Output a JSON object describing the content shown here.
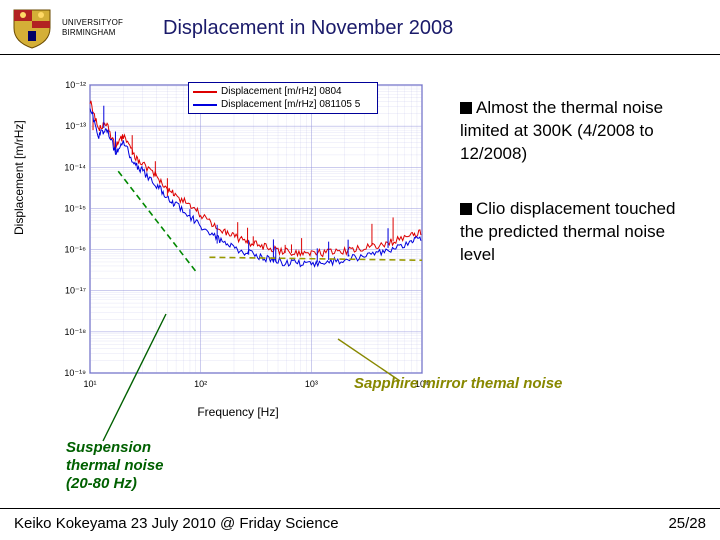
{
  "header": {
    "university_line1": "UNIVERSITYOF",
    "university_line2": "BIRMINGHAM",
    "title": "Displacement in November 2008"
  },
  "bullets": [
    "Almost the thermal noise limited at 300K (4/2008 to 12/2008)",
    "Clio displacement touched the predicted thermal noise level"
  ],
  "annotations": {
    "sapphire": "Sapphire mirror themal noise",
    "suspension": "Suspension thermal noise (20-80 Hz)"
  },
  "footer": {
    "left": "Keiko Kokeyama 23 July 2010 @ Friday Science",
    "right": "25/28"
  },
  "chart": {
    "type": "line-loglog",
    "xlabel": "Frequency [Hz]",
    "ylabel": "Displacement [m/rHz]",
    "xlim": [
      10,
      10000
    ],
    "ylim": [
      1e-19,
      1e-12
    ],
    "xticks": [
      10,
      100,
      1000,
      10000
    ],
    "xtick_labels": [
      "10¹",
      "10²",
      "10³",
      "10⁴"
    ],
    "yticks": [
      1e-19,
      1e-18,
      1e-17,
      1e-16,
      1e-15,
      1e-14,
      1e-13,
      1e-12
    ],
    "ytick_labels": [
      "10⁻¹⁹",
      "10⁻¹⁸",
      "10⁻¹⁷",
      "10⁻¹⁶",
      "10⁻¹⁵",
      "10⁻¹⁴",
      "10⁻¹³",
      "10⁻¹²"
    ],
    "background_color": "#ffffff",
    "grid_color": "#9999dd",
    "axis_color": "#000099",
    "label_fontsize": 12,
    "tick_fontsize": 9,
    "legend": {
      "border_color": "#000099",
      "items": [
        {
          "label": "Displacement [m/rHz] 0804",
          "color": "#dd0000"
        },
        {
          "label": "Displacement [m/rHz] 081105 5",
          "color": "#0000dd"
        }
      ]
    },
    "series": [
      {
        "name": "0804",
        "color": "#dd0000",
        "line_width": 1.0,
        "freq": [
          10,
          12,
          14,
          17,
          20,
          25,
          30,
          40,
          50,
          60,
          80,
          100,
          130,
          170,
          220,
          300,
          400,
          550,
          750,
          1000,
          1400,
          2000,
          2800,
          4000,
          5600,
          8000,
          10000
        ],
        "disp": [
          4e-13,
          8e-14,
          1.2e-13,
          3e-14,
          6e-14,
          2e-14,
          1.2e-14,
          6e-15,
          3.2e-15,
          2e-15,
          1.2e-15,
          7e-16,
          4e-16,
          2.6e-16,
          1.9e-16,
          1.4e-16,
          1.1e-16,
          9e-17,
          8.3e-17,
          8e-17,
          8.4e-17,
          9.2e-17,
          1.05e-16,
          1.25e-16,
          1.6e-16,
          2.1e-16,
          2.8e-16
        ]
      },
      {
        "name": "081105_5",
        "color": "#0000dd",
        "line_width": 1.0,
        "freq": [
          10,
          12,
          14,
          17,
          20,
          25,
          30,
          40,
          50,
          60,
          80,
          100,
          130,
          170,
          220,
          300,
          400,
          550,
          750,
          1000,
          1400,
          2000,
          2800,
          4000,
          5600,
          8000,
          10000
        ],
        "disp": [
          3e-13,
          6e-14,
          9e-14,
          2.3e-14,
          4e-14,
          1.3e-14,
          8e-15,
          3.6e-15,
          1.9e-15,
          1.2e-15,
          6.5e-16,
          3.8e-16,
          2.2e-16,
          1.4e-16,
          1e-16,
          7.5e-17,
          6e-17,
          5e-17,
          4.6e-17,
          4.5e-17,
          4.9e-17,
          5.6e-17,
          6.8e-17,
          8.5e-17,
          1.1e-16,
          1.5e-16,
          2e-16
        ]
      },
      {
        "name": "suspension_guide",
        "color": "#008800",
        "line_width": 1.6,
        "dash": "6 4",
        "freq": [
          18,
          90
        ],
        "disp": [
          8e-15,
          3e-17
        ]
      },
      {
        "name": "sapphire_guide",
        "color": "#999900",
        "line_width": 1.6,
        "dash": "6 4",
        "freq": [
          120,
          10000
        ],
        "disp": [
          6.5e-17,
          5.5e-17
        ]
      }
    ],
    "pointer_lines": [
      {
        "color": "#006000",
        "x1": 0.09,
        "y1": 1.18,
        "x2": 0.23,
        "y2": 0.7
      },
      {
        "color": "#888800",
        "x1": 0.86,
        "y1": 0.99,
        "x2": 0.72,
        "y2": 0.82
      }
    ]
  },
  "crest": {
    "shield_colors": [
      "#d4af37",
      "#b22222",
      "#000066"
    ]
  }
}
